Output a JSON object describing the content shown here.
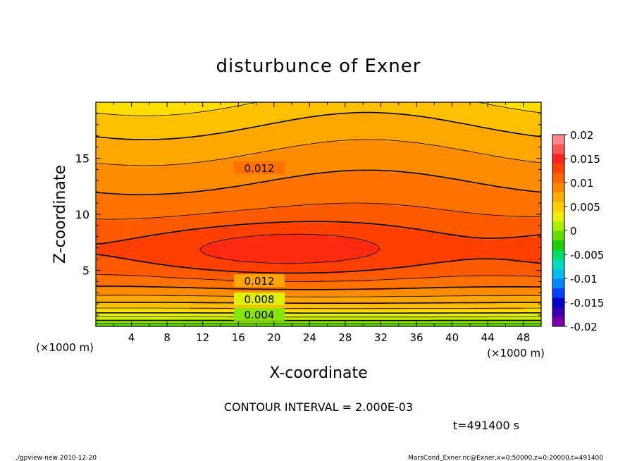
{
  "chart_data": {
    "type": "heatmap",
    "title": "disturbunce of Exner",
    "xlabel": "X-coordinate",
    "ylabel": "Z-coordinate",
    "x_unit_left": "(×1000 m)",
    "x_unit_right": "(×1000 m)",
    "xlim": [
      0,
      50
    ],
    "ylim": [
      0,
      20
    ],
    "x_ticks": [
      "4",
      "8",
      "12",
      "16",
      "20",
      "24",
      "28",
      "32",
      "36",
      "40",
      "44",
      "48"
    ],
    "y_ticks": [
      "5",
      "10",
      "15"
    ],
    "contour_labels": [
      "0.012",
      "0.012",
      "0.008",
      "0.004"
    ],
    "contour_interval_text": "CONTOUR INTERVAL = 2.000E-03",
    "time_text": "t=491400 s",
    "colorbar": {
      "min": -0.02,
      "max": 0.02,
      "tick_labels": [
        "0.02",
        "0.015",
        "0.01",
        "0.005",
        "0",
        "-0.005",
        "-0.01",
        "-0.015",
        "-0.02"
      ],
      "colors": [
        "#7a00aa",
        "#3c00b8",
        "#0000cc",
        "#0040ff",
        "#0088ff",
        "#00bbee",
        "#00ddbb",
        "#00dd66",
        "#22cc00",
        "#66dd00",
        "#aaee00",
        "#eeee00",
        "#ffcc00",
        "#ffaa00",
        "#ff8800",
        "#ff6600",
        "#ff4400",
        "#ff2222",
        "#ff5555",
        "#ff8888"
      ]
    },
    "levels": {
      "colors": [
        "#5cdd00",
        "#88e400",
        "#b4ec00",
        "#e0f000",
        "#ffdd00",
        "#ffc000",
        "#ffa600",
        "#ff8c00",
        "#ff7200",
        "#ff5a00",
        "#ff4000",
        "#ff2a10",
        "#ff1e2a"
      ],
      "values": [
        0.0,
        0.002,
        0.004,
        0.006,
        0.008,
        0.01,
        0.012,
        0.014,
        0.016,
        0.018,
        0.02,
        0.022,
        0.024
      ]
    }
  },
  "footer": {
    "left": "./gpview-new  2010-12-20",
    "right": "MarsCond_Exner.nc@Exner,x=0:50000,z=0:20000,t=491400"
  }
}
